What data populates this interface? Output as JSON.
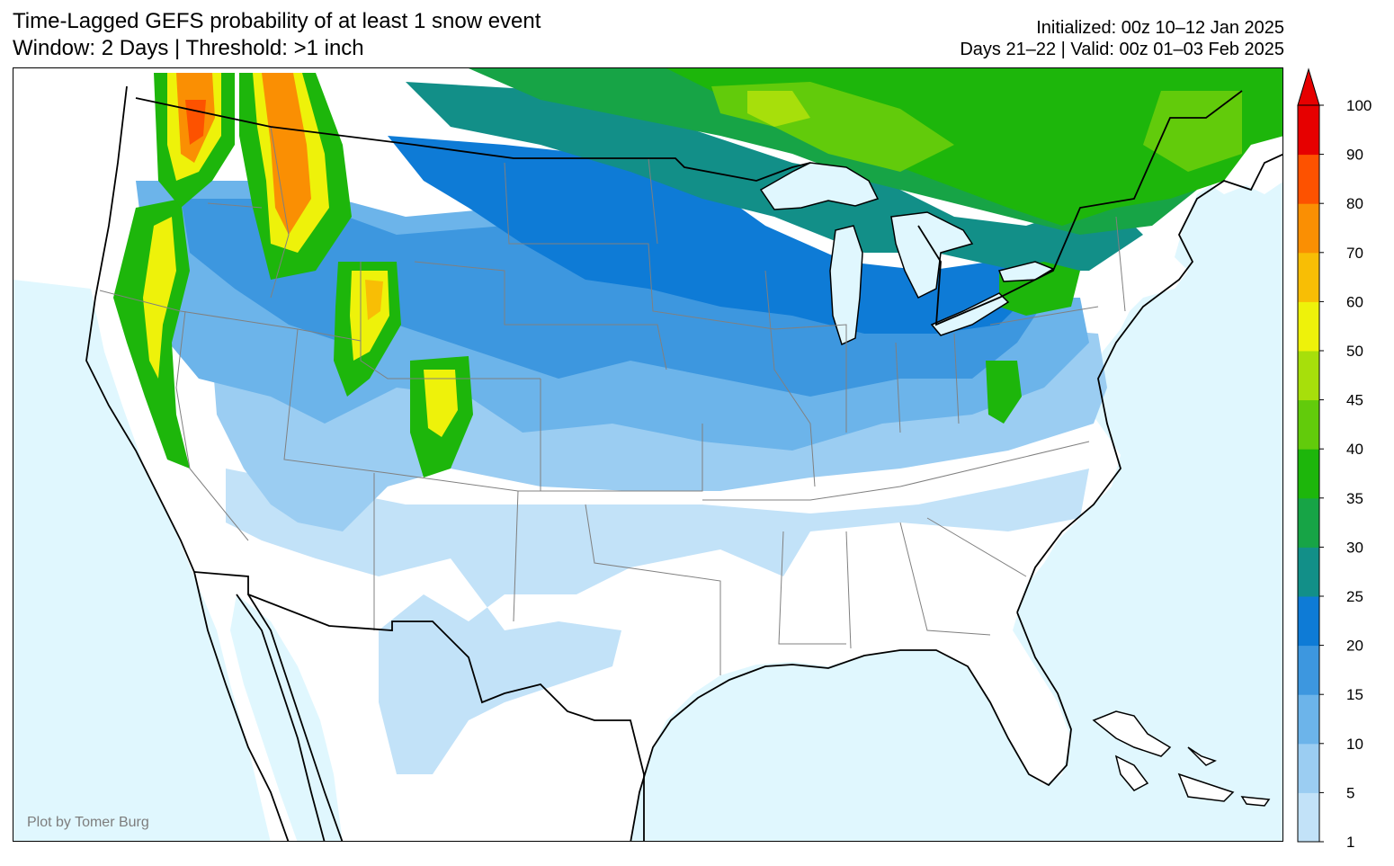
{
  "header": {
    "title_line1": "Time-Lagged GEFS probability of at least 1 snow event",
    "title_line2": "Window: 2 Days | Threshold: >1 inch",
    "initialized": "Initialized: 00z 10–12 Jan 2025",
    "valid": "Days 21–22 | Valid: 00z 01–03 Feb 2025"
  },
  "credit": "Plot by Tomer Burg",
  "colors": {
    "ocean": "#e0f7fe",
    "land": "#ffffff",
    "border": "#000000",
    "state_line": "#808080"
  },
  "colorbar": {
    "extend": "max",
    "extend_color": "#e60000",
    "bins": [
      {
        "from": 1,
        "to": 5,
        "color": "#c2e2f8"
      },
      {
        "from": 5,
        "to": 10,
        "color": "#9bcdf2"
      },
      {
        "from": 10,
        "to": 15,
        "color": "#6cb4ea"
      },
      {
        "from": 15,
        "to": 20,
        "color": "#3d97df"
      },
      {
        "from": 20,
        "to": 25,
        "color": "#0e7bd6"
      },
      {
        "from": 25,
        "to": 30,
        "color": "#128f88"
      },
      {
        "from": 30,
        "to": 35,
        "color": "#17a446"
      },
      {
        "from": 35,
        "to": 40,
        "color": "#1db60b"
      },
      {
        "from": 40,
        "to": 45,
        "color": "#62cb0b"
      },
      {
        "from": 45,
        "to": 50,
        "color": "#a7df0b"
      },
      {
        "from": 50,
        "to": 60,
        "color": "#eef20a"
      },
      {
        "from": 60,
        "to": 70,
        "color": "#f8be05"
      },
      {
        "from": 70,
        "to": 80,
        "color": "#fa8f03"
      },
      {
        "from": 80,
        "to": 90,
        "color": "#fd5200"
      },
      {
        "from": 90,
        "to": 100,
        "color": "#e60000"
      }
    ],
    "tick_labels": [
      "1",
      "5",
      "10",
      "15",
      "20",
      "25",
      "30",
      "35",
      "40",
      "45",
      "50",
      "60",
      "70",
      "80",
      "90",
      "100"
    ]
  }
}
